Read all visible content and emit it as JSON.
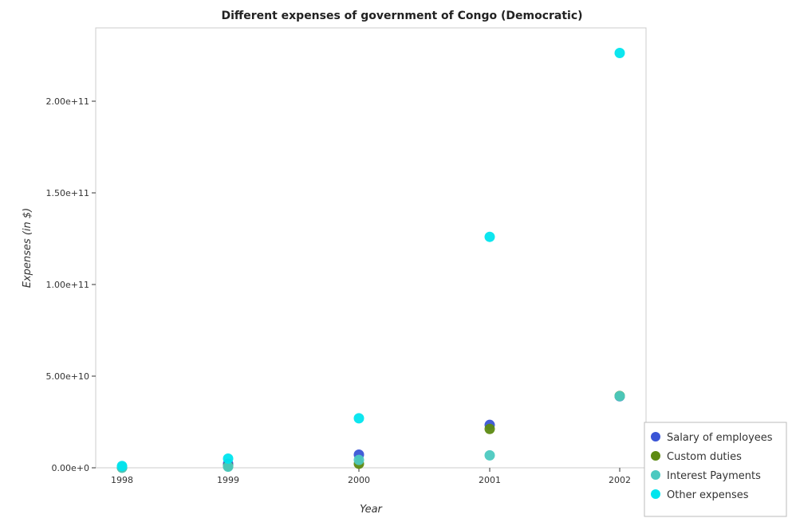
{
  "chart_data": {
    "type": "scatter",
    "title": "Different expenses of government of Congo (Democratic)",
    "xlabel": "Year",
    "ylabel": "Expenses (in $)",
    "categories": [
      "1998",
      "1999",
      "2000",
      "2001",
      "2002"
    ],
    "ylim": [
      0,
      240000000000
    ],
    "yticks": [
      0,
      50000000000,
      100000000000,
      150000000000,
      200000000000
    ],
    "ytick_labels": [
      "0.00e+0",
      "5.00e+10",
      "1.00e+11",
      "1.50e+11",
      "2.00e+11"
    ],
    "legend_position": "bottom-right",
    "grid": false,
    "series": [
      {
        "name": "Salary of employees",
        "color": "#3a55d6",
        "values": [
          200000000,
          2200000000,
          7200000000,
          23400000000,
          39000000000
        ]
      },
      {
        "name": "Custom duties",
        "color": "#5d8a12",
        "values": [
          100000000,
          900000000,
          2200000000,
          21200000000,
          39200000000
        ]
      },
      {
        "name": "Interest Payments",
        "color": "#4cc9c0",
        "values": [
          50000000,
          600000000,
          4300000000,
          6800000000,
          39100000000
        ]
      },
      {
        "name": "Other expenses",
        "color": "#00e5ee",
        "values": [
          1000000000,
          5000000000,
          27000000000,
          126000000000,
          226300000000
        ]
      }
    ]
  }
}
